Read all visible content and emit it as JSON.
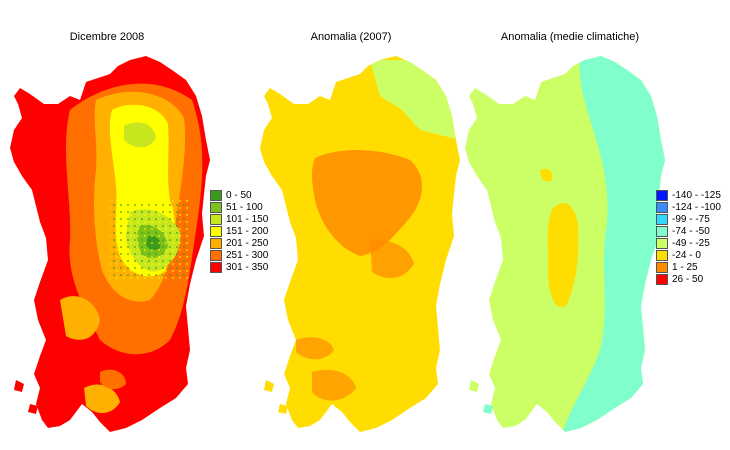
{
  "maps": [
    {
      "title": "Dicembre 2008",
      "legend": [
        {
          "label": "0 - 50",
          "color": "#3a9a1c"
        },
        {
          "label": "51 - 100",
          "color": "#7cc21b"
        },
        {
          "label": "101 - 150",
          "color": "#c8e61e"
        },
        {
          "label": "151 - 200",
          "color": "#ffff00"
        },
        {
          "label": "201 - 250",
          "color": "#ffb000"
        },
        {
          "label": "251 - 300",
          "color": "#ff7000"
        },
        {
          "label": "301 - 350",
          "color": "#ff0000"
        }
      ]
    },
    {
      "title": "Anomalia (2007)"
    },
    {
      "title": "Anomalia (medie climatiche)",
      "legend": [
        {
          "label": "-140 - -125",
          "color": "#0018ff"
        },
        {
          "label": "-124 - -100",
          "color": "#3a8cff"
        },
        {
          "label": "-99 - -75",
          "color": "#33d8ff"
        },
        {
          "label": "-74 - -50",
          "color": "#80ffcc"
        },
        {
          "label": "-49 - -25",
          "color": "#ccff66"
        },
        {
          "label": "-24 - 0",
          "color": "#ffdd00"
        },
        {
          "label": "1 - 25",
          "color": "#ff8c00"
        },
        {
          "label": "26 - 50",
          "color": "#ff0000"
        }
      ]
    }
  ]
}
